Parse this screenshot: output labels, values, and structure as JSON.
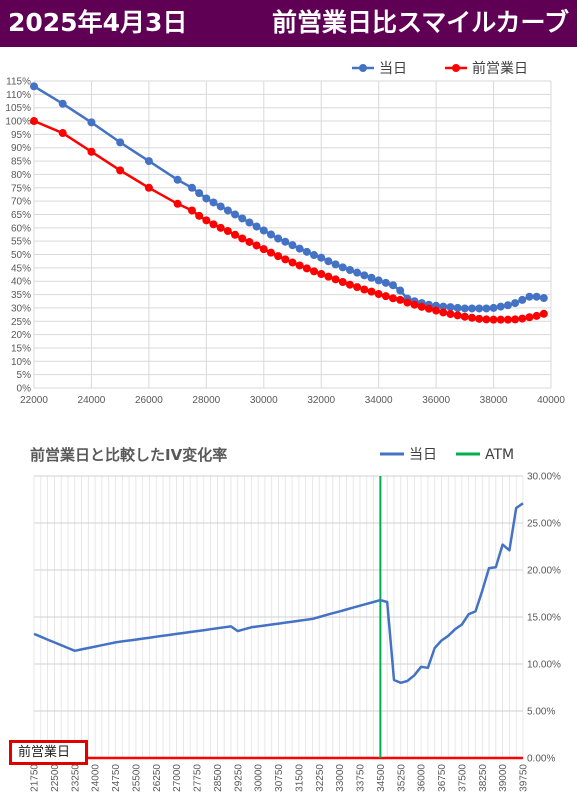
{
  "header": {
    "date": "2025年4月3日",
    "title": "前営業日比スマイルカーブ"
  },
  "chart_data": [
    {
      "type": "line",
      "title": "",
      "legend_position": "top-right",
      "grid": true,
      "x_ticks": [
        "22000",
        "24000",
        "26000",
        "28000",
        "30000",
        "32000",
        "34000",
        "36000",
        "38000",
        "40000"
      ],
      "y_ticks": [
        "0%",
        "5%",
        "10%",
        "15%",
        "20%",
        "25%",
        "30%",
        "35%",
        "40%",
        "45%",
        "50%",
        "55%",
        "60%",
        "65%",
        "70%",
        "75%",
        "80%",
        "85%",
        "90%",
        "95%",
        "100%",
        "105%",
        "110%",
        "115%"
      ],
      "xlim": [
        22000,
        40000
      ],
      "ylim": [
        0,
        1.15
      ],
      "series": [
        {
          "name": "当日",
          "color": "#4472c4",
          "x": [
            22000,
            23000,
            24000,
            25000,
            26000,
            27000,
            27500,
            27750,
            28000,
            28250,
            28500,
            28750,
            29000,
            29250,
            29500,
            29750,
            30000,
            30250,
            30500,
            30750,
            31000,
            31250,
            31500,
            31750,
            32000,
            32250,
            32500,
            32750,
            33000,
            33250,
            33500,
            33750,
            34000,
            34250,
            34500,
            34750,
            35000,
            35250,
            35500,
            35750,
            36000,
            36250,
            36500,
            36750,
            37000,
            37250,
            37500,
            37750,
            38000,
            38250,
            38500,
            38750,
            39000,
            39250,
            39500,
            39750
          ],
          "y": [
            1.13,
            1.065,
            0.995,
            0.92,
            0.85,
            0.78,
            0.75,
            0.73,
            0.71,
            0.695,
            0.68,
            0.665,
            0.65,
            0.635,
            0.62,
            0.605,
            0.59,
            0.575,
            0.56,
            0.548,
            0.535,
            0.522,
            0.51,
            0.498,
            0.488,
            0.475,
            0.463,
            0.452,
            0.442,
            0.432,
            0.422,
            0.413,
            0.403,
            0.394,
            0.385,
            0.365,
            0.335,
            0.325,
            0.318,
            0.312,
            0.308,
            0.305,
            0.303,
            0.3,
            0.298,
            0.298,
            0.298,
            0.298,
            0.3,
            0.305,
            0.31,
            0.318,
            0.33,
            0.342,
            0.342,
            0.337
          ]
        },
        {
          "name": "前営業日",
          "color": "#ff0000",
          "x": [
            22000,
            23000,
            24000,
            25000,
            26000,
            27000,
            27500,
            27750,
            28000,
            28250,
            28500,
            28750,
            29000,
            29250,
            29500,
            29750,
            30000,
            30250,
            30500,
            30750,
            31000,
            31250,
            31500,
            31750,
            32000,
            32250,
            32500,
            32750,
            33000,
            33250,
            33500,
            33750,
            34000,
            34250,
            34500,
            34750,
            35000,
            35250,
            35500,
            35750,
            36000,
            36250,
            36500,
            36750,
            37000,
            37250,
            37500,
            37750,
            38000,
            38250,
            38500,
            38750,
            39000,
            39250,
            39500,
            39750
          ],
          "y": [
            1.0,
            0.955,
            0.885,
            0.815,
            0.75,
            0.69,
            0.665,
            0.645,
            0.628,
            0.613,
            0.6,
            0.588,
            0.574,
            0.56,
            0.547,
            0.534,
            0.52,
            0.507,
            0.494,
            0.482,
            0.47,
            0.459,
            0.448,
            0.437,
            0.427,
            0.417,
            0.407,
            0.397,
            0.387,
            0.378,
            0.369,
            0.361,
            0.352,
            0.344,
            0.336,
            0.33,
            0.32,
            0.312,
            0.304,
            0.297,
            0.29,
            0.283,
            0.277,
            0.272,
            0.267,
            0.263,
            0.259,
            0.257,
            0.256,
            0.256,
            0.256,
            0.257,
            0.26,
            0.265,
            0.27,
            0.278
          ]
        }
      ]
    },
    {
      "type": "line",
      "title": "前営業日と比較したIV変化率",
      "legend_position": "top-right",
      "grid": true,
      "y_axis_position": "right",
      "x_ticks": [
        "21750",
        "22500",
        "23250",
        "24000",
        "24750",
        "25500",
        "26250",
        "27000",
        "27750",
        "28500",
        "29250",
        "30000",
        "30750",
        "31500",
        "32250",
        "33000",
        "33750",
        "34500",
        "35250",
        "36000",
        "36750",
        "37500",
        "38250",
        "39000",
        "39750"
      ],
      "y_ticks": [
        "0.00%",
        "5.00%",
        "10.00%",
        "15.00%",
        "20.00%",
        "25.00%",
        "30.00%"
      ],
      "xlim": [
        21750,
        39750
      ],
      "ylim": [
        0,
        0.3
      ],
      "atm": 34500,
      "baseline_label": "前営業日",
      "series": [
        {
          "name": "当日",
          "color": "#4472c4",
          "x": [
            21750,
            22000,
            22250,
            22500,
            22750,
            23000,
            23250,
            23500,
            23750,
            24000,
            24250,
            24500,
            24750,
            25000,
            25250,
            25500,
            25750,
            26000,
            26250,
            26500,
            26750,
            27000,
            27250,
            27500,
            27750,
            28000,
            28250,
            28500,
            28750,
            29000,
            29250,
            29500,
            29750,
            30000,
            30250,
            30500,
            30750,
            31000,
            31250,
            31500,
            31750,
            32000,
            32250,
            32500,
            32750,
            33000,
            33250,
            33500,
            33750,
            34000,
            34250,
            34500,
            34750,
            35000,
            35250,
            35500,
            35750,
            36000,
            36250,
            36500,
            36750,
            37000,
            37250,
            37500,
            37750,
            38000,
            38250,
            38500,
            38750,
            39000,
            39250,
            39500,
            39750
          ],
          "y": [
            0.132,
            0.129,
            0.126,
            0.123,
            0.12,
            0.117,
            0.114,
            0.1155,
            0.117,
            0.1185,
            0.12,
            0.1215,
            0.123,
            0.124,
            0.125,
            0.126,
            0.127,
            0.128,
            0.129,
            0.13,
            0.131,
            0.132,
            0.133,
            0.134,
            0.135,
            0.136,
            0.137,
            0.138,
            0.139,
            0.14,
            0.135,
            0.137,
            0.139,
            0.14,
            0.141,
            0.142,
            0.143,
            0.144,
            0.145,
            0.146,
            0.147,
            0.148,
            0.15,
            0.152,
            0.154,
            0.156,
            0.158,
            0.16,
            0.162,
            0.164,
            0.166,
            0.168,
            0.166,
            0.083,
            0.08,
            0.082,
            0.088,
            0.097,
            0.096,
            0.117,
            0.125,
            0.13,
            0.137,
            0.142,
            0.153,
            0.156,
            0.178,
            0.202,
            0.203,
            0.227,
            0.221,
            0.266,
            0.271
          ]
        },
        {
          "name": "ATM",
          "color": "#00b050"
        }
      ]
    }
  ]
}
